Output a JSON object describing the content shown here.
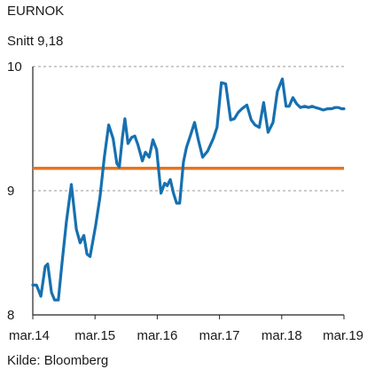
{
  "header": {
    "title": "EURNOK",
    "subtitle": "Snitt 9,18"
  },
  "footer": {
    "source": "Kilde: Bloomberg"
  },
  "colors": {
    "series": "#1670b0",
    "average": "#e8731e",
    "grid": "#9a9a9a",
    "axis": "#222222"
  },
  "chart_data": {
    "type": "line",
    "title": "EURNOK",
    "subtitle": "Snitt 9,18",
    "xlabel": "",
    "ylabel": "",
    "ylim": [
      8,
      10
    ],
    "yticks": [
      {
        "value": 8,
        "label": "8"
      },
      {
        "value": 9,
        "label": "9"
      },
      {
        "value": 10,
        "label": "10"
      }
    ],
    "xticks": [
      {
        "value": 2014.17,
        "label": "mar.14"
      },
      {
        "value": 2015.17,
        "label": "mar.15"
      },
      {
        "value": 2016.17,
        "label": "mar.16"
      },
      {
        "value": 2017.17,
        "label": "mar.17"
      },
      {
        "value": 2018.17,
        "label": "mar.18"
      },
      {
        "value": 2019.17,
        "label": "mar.19"
      }
    ],
    "xlim": [
      2014.17,
      2019.17
    ],
    "grid": true,
    "reference_line": {
      "value": 9.18
    },
    "series": [
      {
        "name": "",
        "x": [
          2014.17,
          2014.23,
          2014.3,
          2014.37,
          2014.41,
          2014.47,
          2014.52,
          2014.58,
          2014.64,
          2014.71,
          2014.79,
          2014.87,
          2014.93,
          2014.99,
          2015.04,
          2015.09,
          2015.13,
          2015.18,
          2015.25,
          2015.32,
          2015.39,
          2015.46,
          2015.52,
          2015.56,
          2015.61,
          2015.65,
          2015.7,
          2015.76,
          2015.81,
          2015.86,
          2015.93,
          2015.98,
          2016.04,
          2016.1,
          2016.16,
          2016.23,
          2016.29,
          2016.33,
          2016.38,
          2016.43,
          2016.48,
          2016.53,
          2016.59,
          2016.64,
          2016.7,
          2016.77,
          2016.83,
          2016.9,
          2016.98,
          2017.07,
          2017.13,
          2017.2,
          2017.27,
          2017.35,
          2017.41,
          2017.47,
          2017.53,
          2017.61,
          2017.68,
          2017.74,
          2017.81,
          2017.88,
          2017.95,
          2018.03,
          2018.1,
          2018.18,
          2018.24,
          2018.29,
          2018.35,
          2018.41,
          2018.47,
          2018.54,
          2018.6,
          2018.66,
          2018.71,
          2018.78,
          2018.84,
          2018.91,
          2018.97,
          2019.03,
          2019.08,
          2019.13,
          2019.17
        ],
        "y": [
          8.24,
          8.24,
          8.15,
          8.39,
          8.41,
          8.18,
          8.12,
          8.12,
          8.42,
          8.75,
          9.05,
          8.69,
          8.58,
          8.64,
          8.49,
          8.47,
          8.58,
          8.72,
          8.95,
          9.27,
          9.53,
          9.42,
          9.22,
          9.19,
          9.43,
          9.58,
          9.38,
          9.43,
          9.44,
          9.37,
          9.24,
          9.31,
          9.27,
          9.41,
          9.33,
          8.98,
          9.06,
          9.04,
          9.09,
          8.98,
          8.9,
          8.9,
          9.23,
          9.35,
          9.44,
          9.55,
          9.41,
          9.27,
          9.32,
          9.42,
          9.51,
          9.87,
          9.86,
          9.57,
          9.58,
          9.63,
          9.66,
          9.69,
          9.57,
          9.53,
          9.51,
          9.71,
          9.47,
          9.55,
          9.8,
          9.9,
          9.68,
          9.68,
          9.75,
          9.7,
          9.67,
          9.68,
          9.67,
          9.68,
          9.67,
          9.66,
          9.65,
          9.66,
          9.66,
          9.67,
          9.67,
          9.66,
          9.66
        ]
      }
    ]
  }
}
